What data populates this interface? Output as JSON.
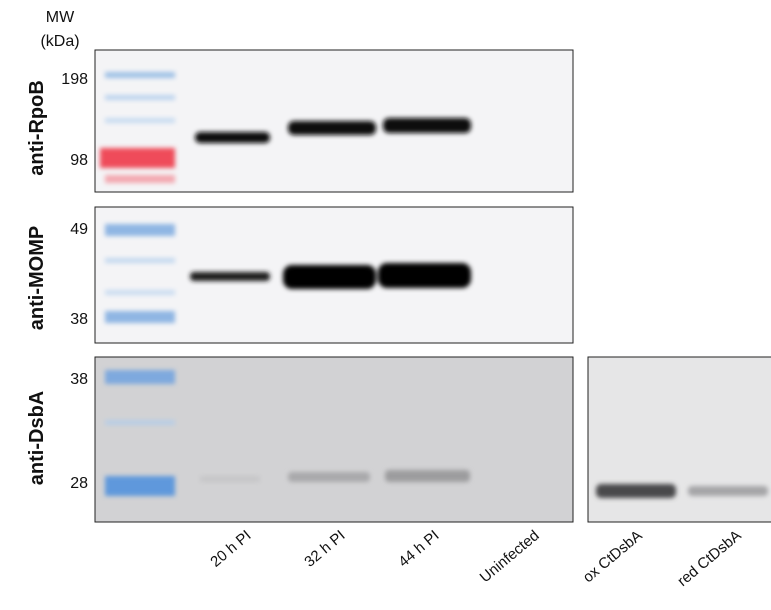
{
  "mw_label": "MW",
  "mw_unit": "(kDa)",
  "panels": [
    {
      "antibody": "anti-RpoB",
      "markers": [
        "198",
        "98"
      ]
    },
    {
      "antibody": "anti-MOMP",
      "markers": [
        "49",
        "38"
      ]
    },
    {
      "antibody": "anti-DsbA",
      "markers": [
        "38",
        "28"
      ]
    }
  ],
  "lanes": [
    "20 h PI",
    "32 h PI",
    "44 h PI",
    "Uninfected",
    "ox CtDsbA",
    "red CtDsbA"
  ]
}
